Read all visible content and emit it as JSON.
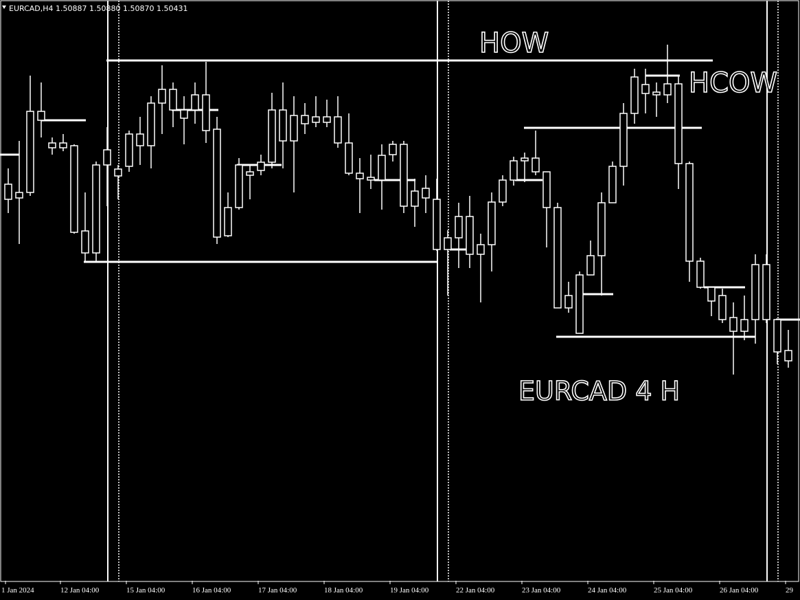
{
  "chart_data": {
    "type": "candlestick",
    "title": "EURCAD,H4 1.50887 1.50880 1.50870 1.50431",
    "annotations": [
      "HOW",
      "HCOW",
      "EURCAD 4 H"
    ],
    "color": "#ffffff",
    "background": "#000000",
    "ylim": [
      1.4981,
      1.515
    ],
    "categories": [
      "1 Jan 2024",
      null,
      null,
      null,
      null,
      "12 Jan 04:00",
      null,
      null,
      null,
      null,
      null,
      "15 Jan 04:00",
      null,
      null,
      null,
      null,
      null,
      "16 Jan 04:00",
      null,
      null,
      null,
      null,
      null,
      "17 Jan 04:00",
      null,
      null,
      null,
      null,
      null,
      "18 Jan 04:00",
      null,
      null,
      null,
      null,
      null,
      "19 Jan 04:00",
      null,
      null,
      null,
      null,
      null,
      "22 Jan 04:00",
      null,
      null,
      null,
      null,
      null,
      "23 Jan 04:00",
      null,
      null,
      null,
      null,
      null,
      "24 Jan 04:00",
      null,
      null,
      null,
      null,
      null,
      "25 Jan 04:00",
      null,
      null,
      null,
      null,
      null,
      "26 Jan 04:00",
      null,
      null,
      null,
      null,
      null,
      "29"
    ],
    "open": [
      1.50964,
      1.5094,
      1.5094,
      1.51176,
      1.51084,
      1.51084,
      1.51076,
      1.50828,
      1.50764,
      1.5102,
      1.50988,
      1.51016,
      1.51076,
      1.51076,
      1.512,
      1.5124,
      1.51156,
      1.5118,
      1.5112,
      1.51124,
      1.50814,
      1.50896,
      1.51,
      1.51004,
      1.51028,
      1.5118,
      1.5109,
      1.51164,
      1.5116,
      1.5116,
      1.5116,
      1.51084,
      1.50996,
      1.50984,
      1.50976,
      1.5105,
      1.5108,
      1.509,
      1.50952,
      1.5092,
      1.50774,
      1.50808,
      1.5087,
      1.5076,
      1.50788,
      1.50912,
      1.50976,
      1.51032,
      1.5104,
      1.51,
      1.50896,
      1.50604,
      1.5053,
      1.507,
      1.50756,
      1.5091,
      1.51016,
      1.5117,
      1.51228,
      1.51224,
      1.51224,
      1.51256,
      1.51024,
      1.5074,
      1.50664,
      1.5064,
      1.50576,
      1.50536,
      1.5057,
      1.5073,
      1.5057,
      1.5045
    ],
    "high": [
      1.5101,
      1.5109,
      1.5128,
      1.5126,
      1.511,
      1.5111,
      1.5108,
      1.5094,
      1.5103,
      1.5113,
      1.5102,
      1.5112,
      1.5116,
      1.5122,
      1.5131,
      1.5126,
      1.5122,
      1.5126,
      1.5132,
      1.5116,
      1.5094,
      1.5104,
      1.5102,
      1.5105,
      1.5123,
      1.5126,
      1.5122,
      1.512,
      1.5122,
      1.5121,
      1.5122,
      1.5117,
      1.5104,
      1.5105,
      1.5108,
      1.5109,
      1.5109,
      1.5098,
      1.5099,
      1.5098,
      1.5083,
      1.5091,
      1.5093,
      1.5082,
      1.5094,
      1.5099,
      1.51044,
      1.51056,
      1.5112,
      1.51,
      1.5091,
      1.5068,
      1.5071,
      1.508,
      1.5094,
      1.5103,
      1.512,
      1.513,
      1.513,
      1.5126,
      1.5137,
      1.5128,
      1.5103,
      1.5075,
      1.5066,
      1.5066,
      1.5062,
      1.5064,
      1.5076,
      1.5076,
      1.5057,
      1.5054
    ],
    "low": [
      1.5088,
      1.5079,
      1.5093,
      1.511,
      1.5105,
      1.5106,
      1.5082,
      1.5074,
      1.5074,
      1.509,
      1.5092,
      1.51,
      1.5102,
      1.5101,
      1.5111,
      1.5113,
      1.5108,
      1.5114,
      1.51084,
      1.5079,
      1.5081,
      1.5089,
      1.5092,
      1.5099,
      1.5101,
      1.5101,
      1.5094,
      1.5111,
      1.5113,
      1.5113,
      1.5107,
      1.5099,
      1.5088,
      1.5095,
      1.5089,
      1.5103,
      1.5088,
      1.5084,
      1.5088,
      1.5077,
      1.5064,
      1.5072,
      1.5072,
      1.5062,
      1.5071,
      1.509,
      1.5096,
      1.5097,
      1.5099,
      1.5078,
      1.50604,
      1.5059,
      1.5053,
      1.507,
      1.5064,
      1.5091,
      1.5096,
      1.5114,
      1.5117,
      1.5116,
      1.512,
      1.5095,
      1.5068,
      1.5066,
      1.5058,
      1.5056,
      1.5041,
      1.5051,
      1.505,
      1.5056,
      1.5044,
      1.5043
    ],
    "close": [
      1.5092,
      1.50924,
      1.51176,
      1.5115,
      1.5107,
      1.5107,
      1.50824,
      1.50764,
      1.5102,
      1.51064,
      1.51008,
      1.5111,
      1.5111,
      1.512,
      1.5124,
      1.5118,
      1.5118,
      1.51224,
      1.51224,
      1.5081,
      1.50896,
      1.5102,
      1.5099,
      1.51028,
      1.5118,
      1.5109,
      1.51164,
      1.5114,
      1.51144,
      1.51144,
      1.51084,
      1.50996,
      1.5098,
      1.50976,
      1.51048,
      1.5108,
      1.509,
      1.50944,
      1.50924,
      1.50774,
      1.50808,
      1.5087,
      1.5076,
      1.50788,
      1.50912,
      1.50976,
      1.51032,
      1.5104,
      1.51,
      1.50896,
      1.50604,
      1.5064,
      1.507,
      1.50756,
      1.5091,
      1.51016,
      1.5117,
      1.51276,
      1.51254,
      1.51232,
      1.51256,
      1.51024,
      1.5074,
      1.50664,
      1.50624,
      1.5057,
      1.50536,
      1.5057,
      1.5073,
      1.5057,
      1.50476,
      1.5048
    ],
    "levels": [
      1.51324,
      1.50738,
      1.5052,
      1.51128,
      1.50664,
      1.50644,
      1.5105,
      1.5115,
      1.5118,
      1.5102,
      1.50976,
      1.50976,
      1.50774,
      1.5128,
      1.5057
    ]
  }
}
